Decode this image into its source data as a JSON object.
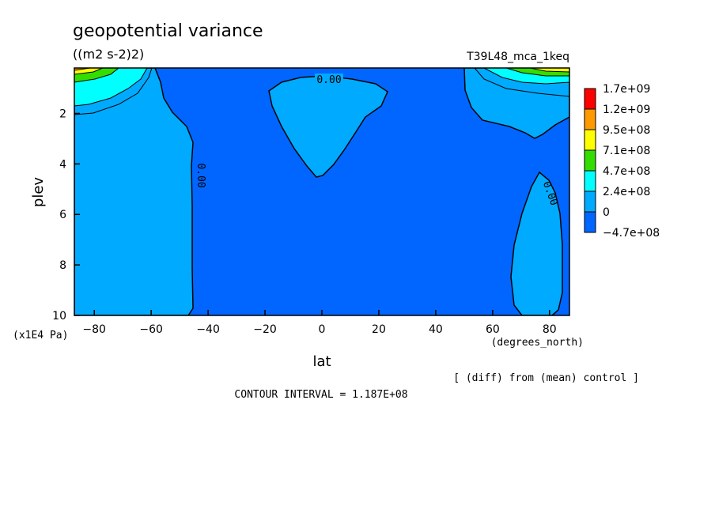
{
  "chart_data": {
    "type": "contour",
    "title": "geopotential variance",
    "units": "((m2 s-2)2)",
    "run_label": "T39L48_mca_1keq",
    "xlabel": "lat",
    "x_units": "(degrees_north)",
    "ylabel": "plev",
    "y_units": "(x1E4 Pa)",
    "xlim": [
      -87,
      87
    ],
    "ylim": [
      10,
      0.2
    ],
    "x_ticks": [
      -80,
      -60,
      -40,
      -20,
      0,
      20,
      40,
      60,
      80
    ],
    "y_ticks": [
      2,
      4,
      6,
      8,
      10
    ],
    "colorbar": {
      "labels": [
        "1.7e+09",
        "1.2e+09",
        "9.5e+08",
        "7.1e+08",
        "4.7e+08",
        "2.4e+08",
        "0",
        "-4.7e+08"
      ],
      "colors": [
        "#ff0000",
        "#ff9900",
        "#ffff00",
        "#33dd00",
        "#00ffff",
        "#00aaff",
        "#0066ff"
      ]
    },
    "contour_labels": [
      {
        "text": "0.00",
        "lat": -2,
        "plev": 0.6
      },
      {
        "text": "0.00",
        "lat": -46,
        "plev": 4.5
      },
      {
        "text": "0.00",
        "lat": 77,
        "plev": 5.3
      }
    ],
    "background_color": "#0066ff",
    "positive_color": "#00aaff",
    "note": "[ (diff) from (mean) control ]",
    "contour_interval": "CONTOUR INTERVAL = 1.187E+08"
  }
}
